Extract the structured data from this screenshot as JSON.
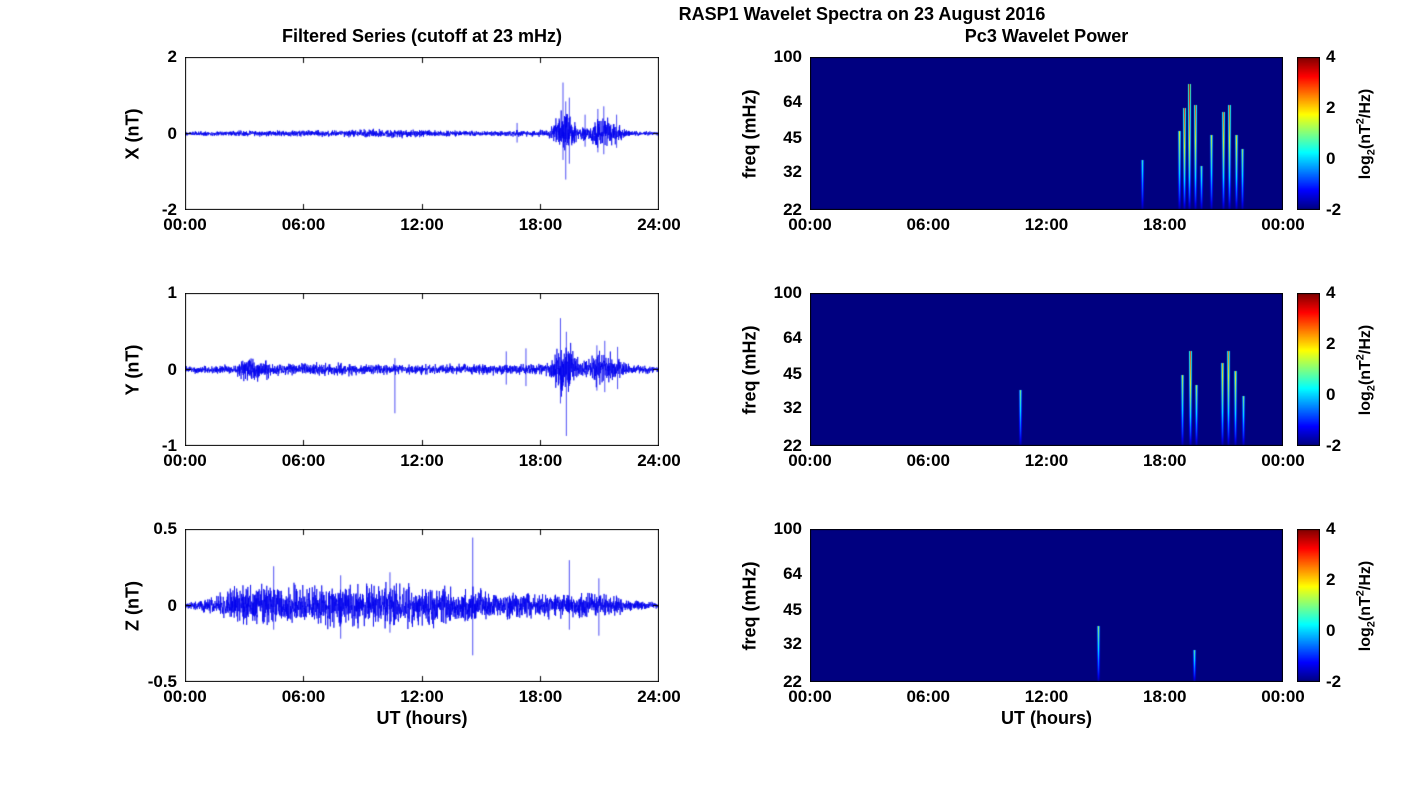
{
  "figure": {
    "title": "RASP1 Wavelet Spectra on 23 August 2016",
    "left_subtitle": "Filtered Series (cutoff at 23 mHz)",
    "right_subtitle": "Pc3 Wavelet Power",
    "xlabel": "UT (hours)"
  },
  "colorbar": {
    "ticks": [
      "4",
      "2",
      "0",
      "-2"
    ],
    "label_parts": [
      "log",
      "2",
      "(nT",
      "2",
      "/Hz)"
    ],
    "clim": [
      -2,
      4
    ],
    "colormap": "jet"
  },
  "chart_data": [
    {
      "id": "ts-x",
      "type": "line",
      "ylabel": "X (nT)",
      "ylim": [
        -2,
        2
      ],
      "yticks": [
        "2",
        "0",
        "-2"
      ],
      "xlim_hours": [
        0,
        24
      ],
      "xticks": [
        "00:00",
        "06:00",
        "12:00",
        "18:00",
        "24:00"
      ],
      "series_color": "#0000EE",
      "noise_envelope": [
        [
          0,
          0.03
        ],
        [
          0.6,
          0.045
        ],
        [
          2,
          0.045
        ],
        [
          3.2,
          0.055
        ],
        [
          8,
          0.055
        ],
        [
          8.8,
          0.075
        ],
        [
          11.6,
          0.075
        ],
        [
          12.2,
          0.055
        ],
        [
          15.8,
          0.045
        ],
        [
          16.8,
          0.06
        ],
        [
          17.4,
          0.05
        ],
        [
          18.4,
          0.06
        ],
        [
          18.75,
          0.22
        ],
        [
          19.1,
          0.38
        ],
        [
          19.45,
          0.42
        ],
        [
          19.7,
          0.25
        ],
        [
          19.95,
          0.1
        ],
        [
          20.25,
          0.17
        ],
        [
          20.55,
          0.12
        ],
        [
          20.8,
          0.26
        ],
        [
          21.2,
          0.3
        ],
        [
          21.6,
          0.24
        ],
        [
          21.95,
          0.18
        ],
        [
          22.3,
          0.07
        ],
        [
          22.8,
          0.04
        ],
        [
          24,
          0.035
        ]
      ],
      "spikes": [
        [
          16.85,
          0.28,
          -0.24
        ],
        [
          19.18,
          1.35,
          -0.7
        ],
        [
          19.32,
          0.85,
          -1.22
        ],
        [
          19.5,
          0.95,
          -0.8
        ],
        [
          20.3,
          0.5,
          -0.35
        ],
        [
          20.95,
          0.65,
          -0.5
        ],
        [
          21.25,
          0.72,
          -0.55
        ],
        [
          21.9,
          0.5,
          -0.38
        ]
      ]
    },
    {
      "id": "ts-y",
      "type": "line",
      "ylabel": "Y (nT)",
      "ylim": [
        -1,
        1
      ],
      "yticks": [
        "1",
        "0",
        "-1"
      ],
      "xlim_hours": [
        0,
        24
      ],
      "xticks": [
        "00:00",
        "06:00",
        "12:00",
        "18:00",
        "24:00"
      ],
      "series_color": "#0000EE",
      "noise_envelope": [
        [
          0,
          0.03
        ],
        [
          2.6,
          0.04
        ],
        [
          2.9,
          0.1
        ],
        [
          3.4,
          0.11
        ],
        [
          4.2,
          0.09
        ],
        [
          4.6,
          0.05
        ],
        [
          7,
          0.055
        ],
        [
          10,
          0.045
        ],
        [
          13.5,
          0.045
        ],
        [
          15,
          0.05
        ],
        [
          16.5,
          0.045
        ],
        [
          18.4,
          0.05
        ],
        [
          18.8,
          0.16
        ],
        [
          19.15,
          0.24
        ],
        [
          19.5,
          0.26
        ],
        [
          19.75,
          0.16
        ],
        [
          20,
          0.08
        ],
        [
          20.4,
          0.11
        ],
        [
          20.8,
          0.14
        ],
        [
          21.2,
          0.16
        ],
        [
          21.6,
          0.14
        ],
        [
          22,
          0.1
        ],
        [
          22.4,
          0.05
        ],
        [
          24,
          0.03
        ]
      ],
      "spikes": [
        [
          10.65,
          0.15,
          -0.58
        ],
        [
          16.3,
          0.24,
          -0.2
        ],
        [
          17.3,
          0.28,
          -0.22
        ],
        [
          19.05,
          0.68,
          -0.45
        ],
        [
          19.35,
          0.5,
          -0.88
        ],
        [
          20.9,
          0.32,
          -0.28
        ],
        [
          21.3,
          0.38,
          -0.3
        ],
        [
          21.95,
          0.3,
          -0.26
        ]
      ]
    },
    {
      "id": "ts-z",
      "type": "line",
      "ylabel": "Z (nT)",
      "ylim": [
        -0.5,
        0.5
      ],
      "yticks": [
        "0.5",
        "0",
        "-0.5"
      ],
      "xlim_hours": [
        0,
        24
      ],
      "xticks": [
        "00:00",
        "06:00",
        "12:00",
        "18:00",
        "24:00"
      ],
      "series_color": "#0000EE",
      "noise_envelope": [
        [
          0,
          0.015
        ],
        [
          0.8,
          0.025
        ],
        [
          1.6,
          0.045
        ],
        [
          2.6,
          0.075
        ],
        [
          3.6,
          0.09
        ],
        [
          5,
          0.085
        ],
        [
          6.6,
          0.09
        ],
        [
          8.2,
          0.09
        ],
        [
          9.6,
          0.085
        ],
        [
          11,
          0.09
        ],
        [
          12.6,
          0.09
        ],
        [
          13.6,
          0.075
        ],
        [
          14.8,
          0.07
        ],
        [
          16,
          0.06
        ],
        [
          17.5,
          0.055
        ],
        [
          18.6,
          0.05
        ],
        [
          19.6,
          0.06
        ],
        [
          20.6,
          0.055
        ],
        [
          21.6,
          0.05
        ],
        [
          22.4,
          0.03
        ],
        [
          23.2,
          0.02
        ],
        [
          24,
          0.015
        ]
      ],
      "spikes": [
        [
          4.5,
          0.26,
          -0.16
        ],
        [
          7.9,
          0.2,
          -0.22
        ],
        [
          10.4,
          0.22,
          -0.18
        ],
        [
          14.6,
          0.45,
          -0.33
        ],
        [
          19.5,
          0.3,
          -0.16
        ],
        [
          21.0,
          0.18,
          -0.2
        ]
      ]
    },
    {
      "id": "spec-x",
      "type": "heatmap",
      "ylabel": "freq (mHz)",
      "freq_range_mhz": [
        22,
        100
      ],
      "freq_scale": "log",
      "yticks": [
        "100",
        "64",
        "45",
        "32",
        "22"
      ],
      "xlim_hours": [
        0,
        24
      ],
      "xticks": [
        "00:00",
        "06:00",
        "12:00",
        "18:00",
        "00:00"
      ],
      "background_value": -2,
      "clim": [
        -2,
        4
      ],
      "colormap": "jet",
      "streaks": [
        {
          "t": 16.85,
          "f_low": 22,
          "f_high": 36,
          "peak": 0.6
        },
        {
          "t": 18.7,
          "f_low": 22,
          "f_high": 48,
          "peak": 1.8
        },
        {
          "t": 19.0,
          "f_low": 22,
          "f_high": 60,
          "peak": 3.2
        },
        {
          "t": 19.25,
          "f_low": 22,
          "f_high": 76,
          "peak": 3.8
        },
        {
          "t": 19.55,
          "f_low": 22,
          "f_high": 62,
          "peak": 3.0
        },
        {
          "t": 19.85,
          "f_low": 22,
          "f_high": 34,
          "peak": 0.9
        },
        {
          "t": 20.35,
          "f_low": 22,
          "f_high": 46,
          "peak": 1.6
        },
        {
          "t": 20.95,
          "f_low": 22,
          "f_high": 58,
          "peak": 2.8
        },
        {
          "t": 21.25,
          "f_low": 22,
          "f_high": 62,
          "peak": 3.0
        },
        {
          "t": 21.6,
          "f_low": 22,
          "f_high": 46,
          "peak": 2.0
        },
        {
          "t": 21.9,
          "f_low": 22,
          "f_high": 40,
          "peak": 1.3
        }
      ]
    },
    {
      "id": "spec-y",
      "type": "heatmap",
      "ylabel": "freq (mHz)",
      "freq_range_mhz": [
        22,
        100
      ],
      "freq_scale": "log",
      "yticks": [
        "100",
        "64",
        "45",
        "32",
        "22"
      ],
      "xlim_hours": [
        0,
        24
      ],
      "xticks": [
        "00:00",
        "06:00",
        "12:00",
        "18:00",
        "00:00"
      ],
      "background_value": -2,
      "clim": [
        -2,
        4
      ],
      "colormap": "jet",
      "streaks": [
        {
          "t": 10.65,
          "f_low": 22,
          "f_high": 38,
          "peak": 1.0
        },
        {
          "t": 18.9,
          "f_low": 22,
          "f_high": 44,
          "peak": 1.5
        },
        {
          "t": 19.3,
          "f_low": 22,
          "f_high": 56,
          "peak": 3.0
        },
        {
          "t": 19.6,
          "f_low": 22,
          "f_high": 40,
          "peak": 1.4
        },
        {
          "t": 20.9,
          "f_low": 22,
          "f_high": 50,
          "peak": 2.2
        },
        {
          "t": 21.2,
          "f_low": 22,
          "f_high": 56,
          "peak": 2.6
        },
        {
          "t": 21.55,
          "f_low": 22,
          "f_high": 46,
          "peak": 2.0
        },
        {
          "t": 21.95,
          "f_low": 22,
          "f_high": 36,
          "peak": 1.1
        }
      ]
    },
    {
      "id": "spec-z",
      "type": "heatmap",
      "ylabel": "freq (mHz)",
      "freq_range_mhz": [
        22,
        100
      ],
      "freq_scale": "log",
      "yticks": [
        "100",
        "64",
        "45",
        "32",
        "22"
      ],
      "xlim_hours": [
        0,
        24
      ],
      "xticks": [
        "00:00",
        "06:00",
        "12:00",
        "18:00",
        "00:00"
      ],
      "background_value": -2,
      "clim": [
        -2,
        4
      ],
      "colormap": "jet",
      "streaks": [
        {
          "t": 14.6,
          "f_low": 22,
          "f_high": 38,
          "peak": 1.2
        },
        {
          "t": 19.5,
          "f_low": 22,
          "f_high": 30,
          "peak": 0.8
        }
      ]
    }
  ]
}
